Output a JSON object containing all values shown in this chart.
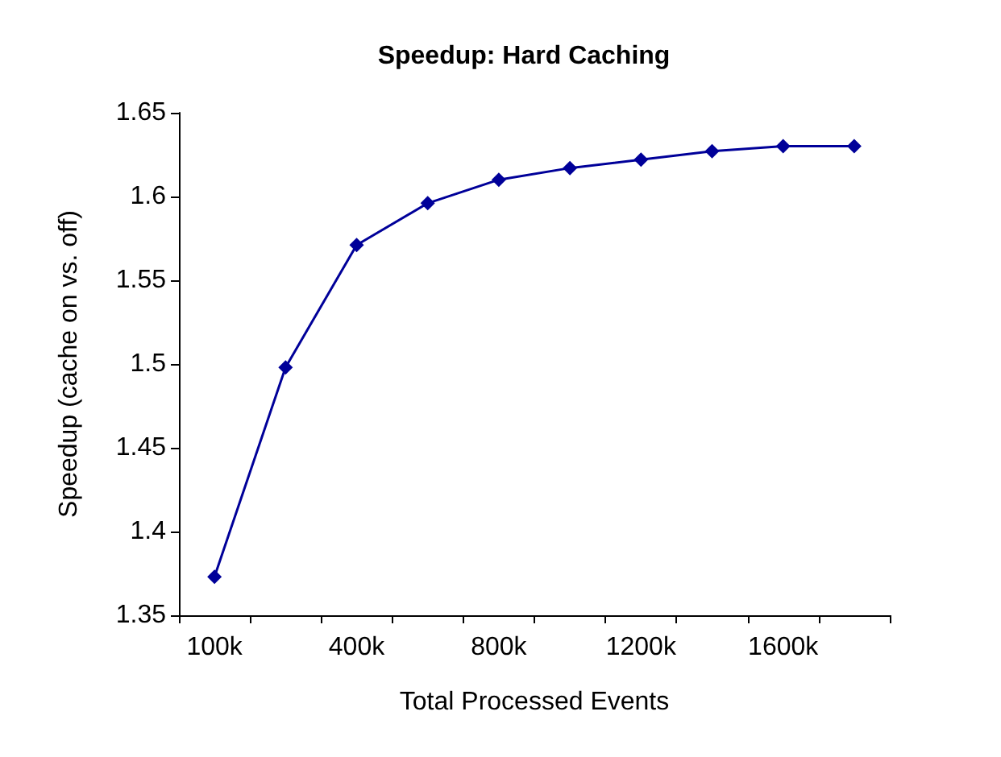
{
  "chart_data": {
    "type": "line",
    "title": "Speedup: Hard Caching",
    "xlabel": "Total Processed Events",
    "ylabel": "Speedup (cache on vs. off)",
    "categories": [
      "100k",
      null,
      "400k",
      null,
      "800k",
      null,
      "1200k",
      null,
      "1600k",
      null
    ],
    "series": [
      {
        "color": "#000099",
        "values": [
          1.373,
          1.498,
          1.571,
          1.596,
          1.61,
          1.617,
          1.622,
          1.627,
          1.63,
          1.63
        ]
      }
    ],
    "ylim": [
      1.35,
      1.65
    ],
    "yticks": [
      1.35,
      1.4,
      1.45,
      1.5,
      1.55,
      1.6,
      1.65
    ],
    "marker": "diamond",
    "line_style": "solid"
  }
}
